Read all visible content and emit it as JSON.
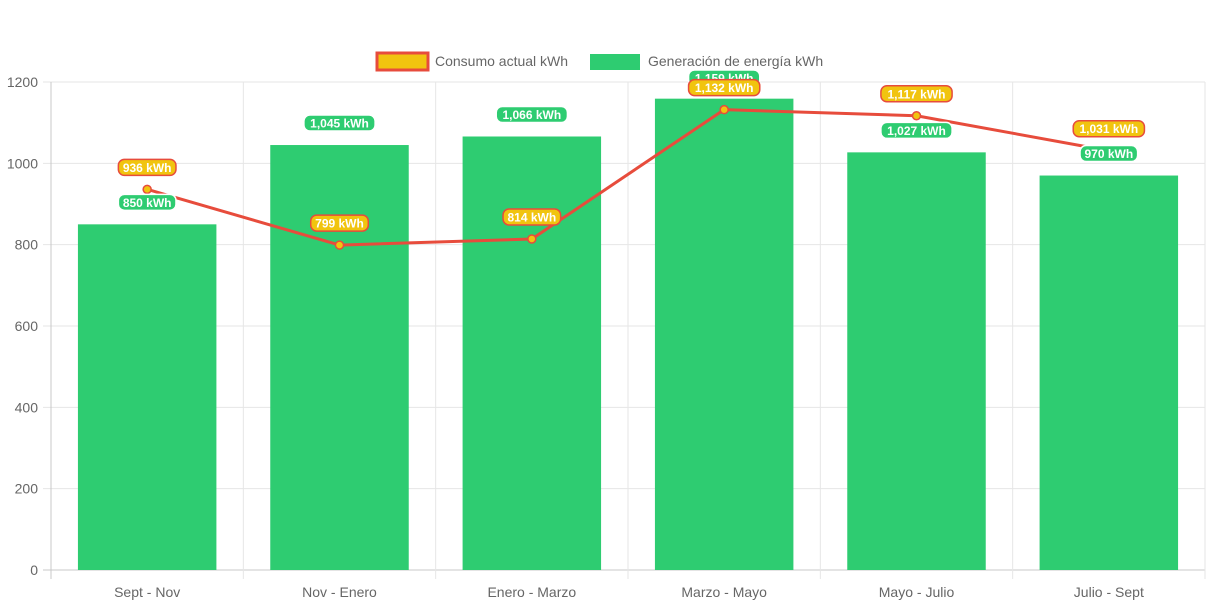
{
  "chart_data": {
    "type": "bar",
    "categories": [
      "Sept - Nov",
      "Nov - Enero",
      "Enero - Marzo",
      "Marzo - Mayo",
      "Mayo - Julio",
      "Julio - Sept"
    ],
    "series": [
      {
        "name": "Consumo actual kWh",
        "type": "line",
        "values": [
          936,
          799,
          814,
          1132,
          1117,
          1031
        ],
        "labels": [
          "936 kWh",
          "799 kWh",
          "814 kWh",
          "1,132 kWh",
          "1,117 kWh",
          "1,031 kWh"
        ],
        "color": "#e74c3c",
        "fill_color": "#f1c40f"
      },
      {
        "name": "Generación de energía kWh",
        "type": "bar",
        "values": [
          850,
          1045,
          1066,
          1159,
          1027,
          970
        ],
        "labels": [
          "850 kWh",
          "1,045 kWh",
          "1,066 kWh",
          "1,159 kWh",
          "1,027 kWh",
          "970 kWh"
        ],
        "color": "#2ecc71"
      }
    ],
    "ylim": [
      0,
      1200
    ],
    "yticks": [
      "0",
      "200",
      "400",
      "600",
      "800",
      "1000",
      "1200"
    ],
    "grid": true,
    "legend": "top-center"
  }
}
